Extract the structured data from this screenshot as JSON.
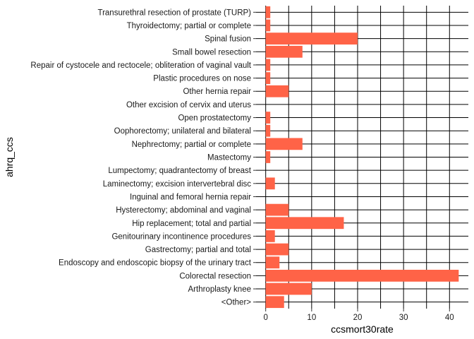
{
  "chart_data": {
    "type": "bar",
    "orientation": "horizontal",
    "categories": [
      "Transurethral resection of prostate (TURP)",
      "Thyroidectomy; partial or complete",
      "Spinal fusion",
      "Small bowel resection",
      "Repair of cystocele and rectocele; obliteration of vaginal vault",
      "Plastic procedures on nose",
      "Other hernia repair",
      "Other excision of cervix and uterus",
      "Open prostatectomy",
      "Oophorectomy; unilateral and bilateral",
      "Nephrectomy; partial or complete",
      "Mastectomy",
      "Lumpectomy; quadrantectomy of breast",
      "Laminectomy; excision intervertebral disc",
      "Inguinal and femoral hernia repair",
      "Hysterectomy; abdominal and vaginal",
      "Hip replacement; total and partial",
      "Genitourinary incontinence procedures",
      "Gastrectomy; partial and total",
      "Endoscopy and endoscopic biopsy of the urinary tract",
      "Colorectal resection",
      "Arthroplasty knee",
      "<Other>"
    ],
    "values": [
      1,
      1,
      20,
      8,
      1,
      1,
      5,
      0,
      1,
      1,
      8,
      1,
      0,
      2,
      0,
      5,
      17,
      2,
      5,
      3,
      42,
      10,
      4
    ],
    "xlabel": "ccsmort30rate",
    "ylabel": "ahrq_ccs",
    "xlim": [
      -2.1,
      44.1
    ],
    "xticks": [
      0,
      10,
      20,
      30,
      40
    ],
    "xminor": [
      5,
      15,
      25,
      35
    ],
    "grid": true,
    "bar_color": "#FF6347"
  }
}
